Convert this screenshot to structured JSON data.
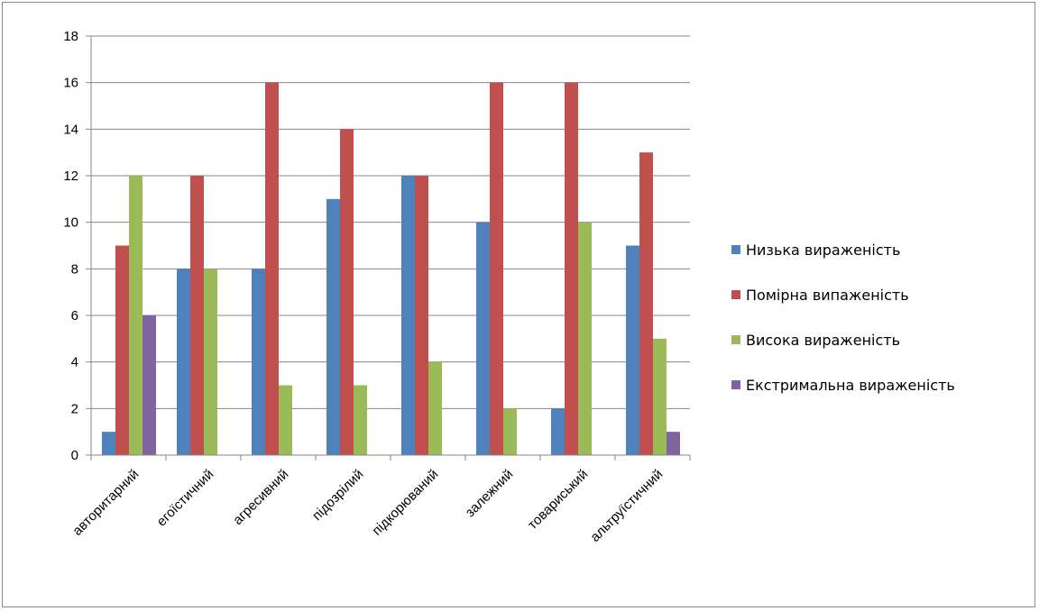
{
  "chart_data": {
    "type": "bar",
    "title": "",
    "xlabel": "",
    "ylabel": "",
    "ylim": [
      0,
      18
    ],
    "ytick_step": 2,
    "grid": true,
    "legend_position": "right",
    "categories": [
      "авторитарний",
      "егоїстичний",
      "агресивний",
      "підозрілий",
      "підкорюваний",
      "залежний",
      "товариський",
      "альтруїстичний"
    ],
    "series": [
      {
        "name": "Низька вираженість",
        "color": "#4f81bd",
        "values": [
          1,
          8,
          8,
          11,
          12,
          10,
          2,
          9
        ]
      },
      {
        "name": "Помірна випаженість",
        "color": "#c0504d",
        "values": [
          9,
          12,
          16,
          14,
          12,
          16,
          16,
          13
        ]
      },
      {
        "name": "Висока вираженість",
        "color": "#9bbb59",
        "values": [
          12,
          8,
          3,
          3,
          4,
          2,
          10,
          5
        ]
      },
      {
        "name": "Екстримальна вираженість",
        "color": "#8064a2",
        "values": [
          6,
          0,
          0,
          0,
          0,
          0,
          0,
          1
        ]
      }
    ]
  }
}
